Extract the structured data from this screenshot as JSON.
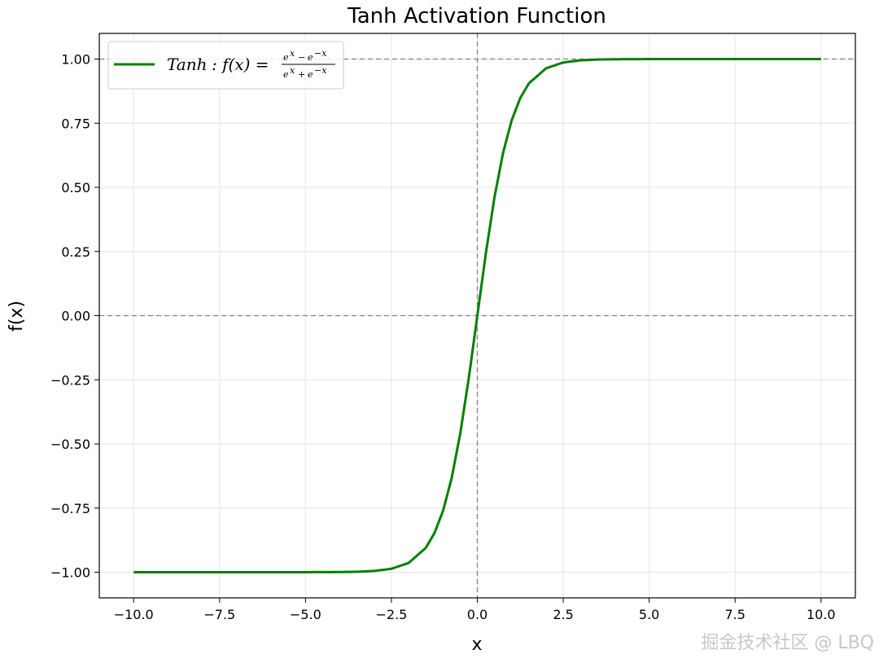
{
  "watermark": "掘金技术社区 @ LBQ",
  "chart_data": {
    "type": "line",
    "title": "Tanh Activation Function",
    "xlabel": "x",
    "ylabel": "f(x)",
    "xlim": [
      -11,
      11
    ],
    "ylim": [
      -1.1,
      1.1
    ],
    "xticks": [
      -10.0,
      -7.5,
      -5.0,
      -2.5,
      0.0,
      2.5,
      5.0,
      7.5,
      10.0
    ],
    "xtick_labels": [
      "−10.0",
      "−7.5",
      "−5.0",
      "−2.5",
      "0.0",
      "2.5",
      "5.0",
      "7.5",
      "10.0"
    ],
    "yticks": [
      1.0,
      0.75,
      0.5,
      0.25,
      0.0,
      -0.25,
      -0.5,
      -0.75,
      -1.0
    ],
    "ytick_labels": [
      "1.00",
      "0.75",
      "0.50",
      "0.25",
      "0.00",
      "−0.25",
      "−0.50",
      "−0.75",
      "−1.00"
    ],
    "grid": true,
    "reference_lines": [
      {
        "axis": "y",
        "value": 1.0,
        "style": "dashed",
        "color": "#808080"
      },
      {
        "axis": "y",
        "value": 0.0,
        "style": "dashed",
        "color": "#808080"
      },
      {
        "axis": "x",
        "value": 0.0,
        "style": "dashed",
        "color": "#808080"
      }
    ],
    "legend_placement": "top-left",
    "series": [
      {
        "name": "Tanh: f(x) = (e^x − e^−x)/(e^x + e^−x)",
        "color": "#008000",
        "x": [
          -10,
          -8,
          -6,
          -5,
          -4,
          -3.5,
          -3,
          -2.5,
          -2,
          -1.5,
          -1.25,
          -1,
          -0.75,
          -0.5,
          -0.25,
          0,
          0.25,
          0.5,
          0.75,
          1,
          1.25,
          1.5,
          2,
          2.5,
          3,
          3.5,
          4,
          5,
          6,
          8,
          10
        ],
        "y": [
          -1.0,
          -1.0,
          -1.0,
          -0.9999,
          -0.9993,
          -0.9982,
          -0.9951,
          -0.9866,
          -0.964,
          -0.9051,
          -0.8483,
          -0.7616,
          -0.6351,
          -0.4621,
          -0.2449,
          0.0,
          0.2449,
          0.4621,
          0.6351,
          0.7616,
          0.8483,
          0.9051,
          0.964,
          0.9866,
          0.9951,
          0.9982,
          0.9993,
          0.9999,
          1.0,
          1.0,
          1.0
        ]
      }
    ]
  }
}
